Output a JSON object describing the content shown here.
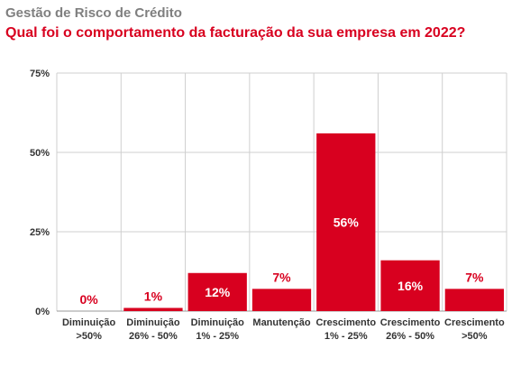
{
  "header": {
    "subtitle": "Gestão de Risco de Crédito",
    "title": "Qual foi o comportamento da facturação da sua empresa em 2022?"
  },
  "colors": {
    "bar": "#d8001f",
    "label_on_bar": "#ffffff",
    "label_above": "#d8001f",
    "grid": "#cfcfcf"
  },
  "chart_data": {
    "type": "bar",
    "categories": [
      [
        "Diminuição",
        ">50%"
      ],
      [
        "Diminuição",
        "26% - 50%"
      ],
      [
        "Diminuição",
        "1% - 25%"
      ],
      [
        "Manutenção"
      ],
      [
        "Crescimento",
        "1% - 25%"
      ],
      [
        "Crescimento",
        "26% - 50%"
      ],
      [
        "Crescimento",
        ">50%"
      ]
    ],
    "values": [
      0,
      1,
      12,
      7,
      56,
      16,
      7
    ],
    "data_labels": [
      "0%",
      "1%",
      "12%",
      "7%",
      "56%",
      "16%",
      "7%"
    ],
    "ylim": [
      0,
      75
    ],
    "yticks": [
      0,
      25,
      50,
      75
    ],
    "ytick_labels": [
      "0%",
      "25%",
      "50%",
      "75%"
    ],
    "grid": true
  }
}
